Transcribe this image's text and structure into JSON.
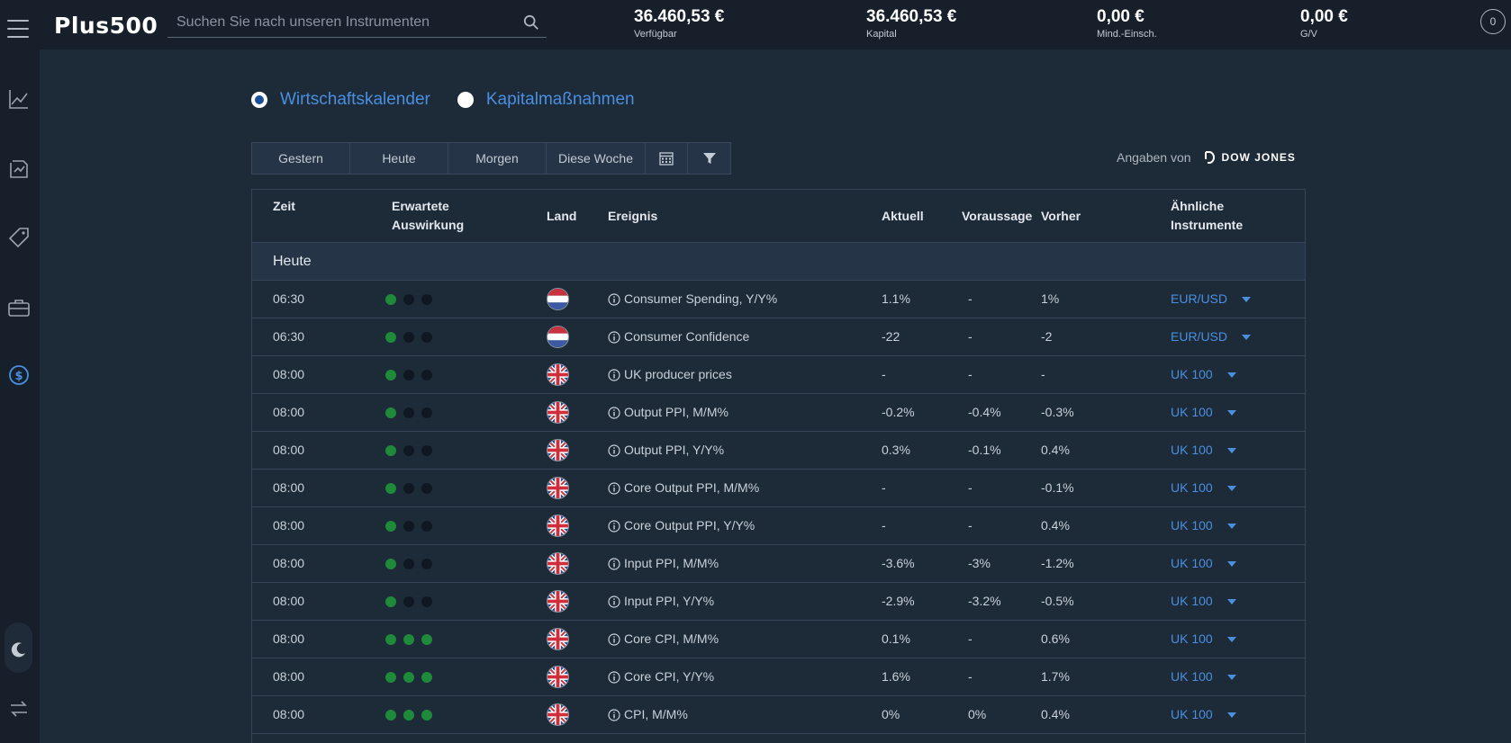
{
  "header": {
    "logo": "Plus500",
    "search_placeholder": "Suchen Sie nach unseren Instrumenten",
    "stats": [
      {
        "value": "36.460,53 €",
        "label": "Verfügbar"
      },
      {
        "value": "36.460,53 €",
        "label": "Kapital"
      },
      {
        "value": "0,00 €",
        "label": "Mind.-Einsch."
      },
      {
        "value": "0,00 €",
        "label": "G/V"
      }
    ],
    "notifications": "0"
  },
  "sidebar": {
    "icons": [
      "chart-icon",
      "trade-arrows-icon",
      "tag-icon",
      "briefcase-icon",
      "dollar-circle-icon",
      "moon-icon",
      "swap-icon"
    ]
  },
  "tabs": {
    "economic_calendar": "Wirtschaftskalender",
    "corporate_actions": "Kapitalmaßnahmen"
  },
  "filters": {
    "yesterday": "Gestern",
    "today": "Heute",
    "tomorrow": "Morgen",
    "this_week": "Diese Woche"
  },
  "provider": {
    "text": "Angaben von",
    "name": "DOW JONES"
  },
  "table": {
    "headers": {
      "time": "Zeit",
      "impact_1": "Erwartete",
      "impact_2": "Auswirkung",
      "country": "Land",
      "event": "Ereignis",
      "actual": "Aktuell",
      "forecast": "Voraussage",
      "previous": "Vorher",
      "instruments_1": "Ähnliche",
      "instruments_2": "Instrumente"
    },
    "group": "Heute",
    "rows": [
      {
        "time": "06:30",
        "impact": 1,
        "flag": "nl",
        "event": "Consumer Spending, Y/Y%",
        "actual": "1.1%",
        "forecast": "-",
        "previous": "1%",
        "instrument": "EUR/USD"
      },
      {
        "time": "06:30",
        "impact": 1,
        "flag": "nl",
        "event": "Consumer Confidence",
        "actual": "-22",
        "forecast": "-",
        "previous": "-2",
        "instrument": "EUR/USD"
      },
      {
        "time": "08:00",
        "impact": 1,
        "flag": "gb",
        "event": "UK producer prices",
        "actual": "-",
        "forecast": "-",
        "previous": "-",
        "instrument": "UK 100"
      },
      {
        "time": "08:00",
        "impact": 1,
        "flag": "gb",
        "event": "Output PPI, M/M%",
        "actual": "-0.2%",
        "forecast": "-0.4%",
        "previous": "-0.3%",
        "instrument": "UK 100"
      },
      {
        "time": "08:00",
        "impact": 1,
        "flag": "gb",
        "event": "Output PPI, Y/Y%",
        "actual": "0.3%",
        "forecast": "-0.1%",
        "previous": "0.4%",
        "instrument": "UK 100"
      },
      {
        "time": "08:00",
        "impact": 1,
        "flag": "gb",
        "event": "Core Output PPI, M/M%",
        "actual": "-",
        "forecast": "-",
        "previous": "-0.1%",
        "instrument": "UK 100"
      },
      {
        "time": "08:00",
        "impact": 1,
        "flag": "gb",
        "event": "Core Output PPI, Y/Y%",
        "actual": "-",
        "forecast": "-",
        "previous": "0.4%",
        "instrument": "UK 100"
      },
      {
        "time": "08:00",
        "impact": 1,
        "flag": "gb",
        "event": "Input PPI, M/M%",
        "actual": "-3.6%",
        "forecast": "-3%",
        "previous": "-1.2%",
        "instrument": "UK 100"
      },
      {
        "time": "08:00",
        "impact": 1,
        "flag": "gb",
        "event": "Input PPI, Y/Y%",
        "actual": "-2.9%",
        "forecast": "-3.2%",
        "previous": "-0.5%",
        "instrument": "UK 100"
      },
      {
        "time": "08:00",
        "impact": 3,
        "flag": "gb",
        "event": "Core CPI, M/M%",
        "actual": "0.1%",
        "forecast": "-",
        "previous": "0.6%",
        "instrument": "UK 100"
      },
      {
        "time": "08:00",
        "impact": 3,
        "flag": "gb",
        "event": "Core CPI, Y/Y%",
        "actual": "1.6%",
        "forecast": "-",
        "previous": "1.7%",
        "instrument": "UK 100"
      },
      {
        "time": "08:00",
        "impact": 3,
        "flag": "gb",
        "event": "CPI, M/M%",
        "actual": "0%",
        "forecast": "0%",
        "previous": "0.4%",
        "instrument": "UK 100"
      }
    ]
  },
  "colors": {
    "accent": "#4b8fe0",
    "impact_on": "#1e8a3a",
    "impact_off": "#0f1822"
  }
}
